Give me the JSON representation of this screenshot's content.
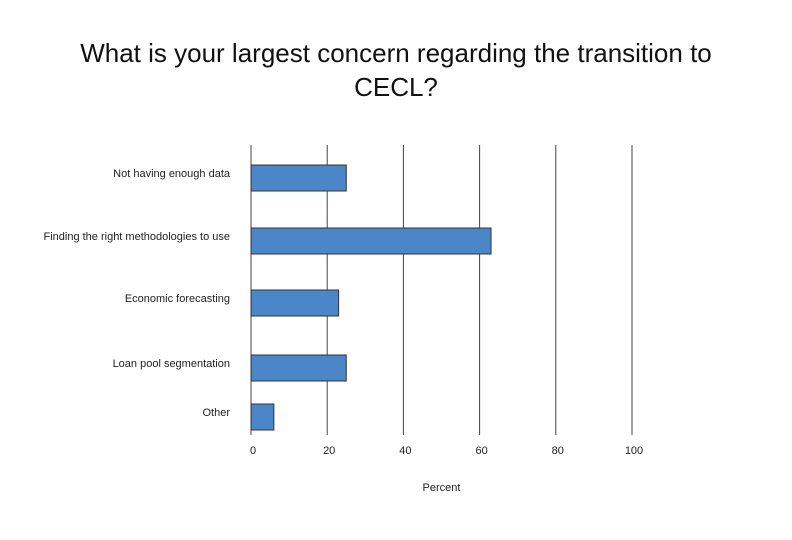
{
  "chart_data": {
    "type": "bar",
    "orientation": "horizontal",
    "title": "What is your largest concern regarding the transition to CECL?",
    "categories": [
      "Not having enough data",
      "Finding the right methodologies to use",
      "Economic forecasting",
      "Loan pool segmentation",
      "Other"
    ],
    "values": [
      25,
      63,
      23,
      25,
      6
    ],
    "color": "#4a86c8",
    "xlabel": "Percent",
    "xlim": [
      0,
      100
    ],
    "xticks": [
      0,
      20,
      40,
      60,
      80,
      100
    ],
    "grid": true
  }
}
